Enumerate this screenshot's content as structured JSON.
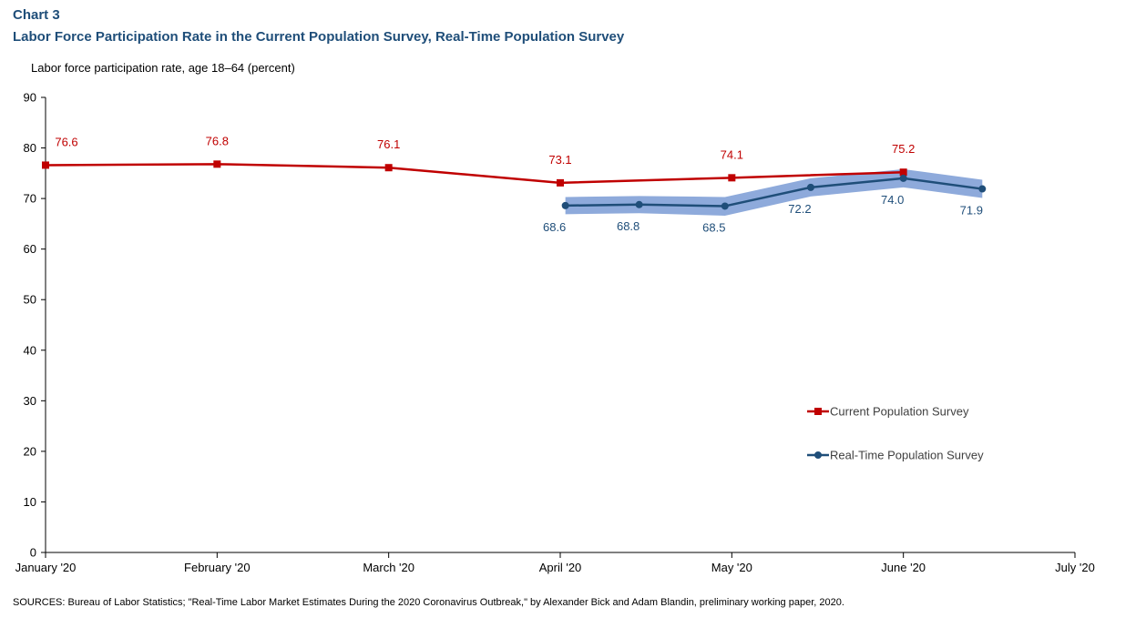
{
  "header": {
    "chart_label": "Chart 3",
    "title": "Labor Force Participation Rate in the Current Population Survey, Real-Time Population Survey"
  },
  "footer": {
    "sources": "SOURCES: Bureau of Labor Statistics; \"Real-Time Labor Market Estimates During the 2020 Coronavirus Outbreak,\" by Alexander Bick and Adam Blandin, preliminary working paper, 2020."
  },
  "colors": {
    "title": "#1f4e79",
    "cps": "#c00000",
    "rps": "#1f4e79",
    "band": "#8eaadb"
  },
  "chart_data": {
    "type": "line",
    "ylabel": "Labor force participation rate, age 18–64 (percent)",
    "ylim": [
      0,
      90
    ],
    "yticks": [
      0,
      10,
      20,
      30,
      40,
      50,
      60,
      70,
      80,
      90
    ],
    "xlim": [
      0,
      6
    ],
    "xticks": [
      {
        "x": 0,
        "label": "January '20"
      },
      {
        "x": 1,
        "label": "February '20"
      },
      {
        "x": 2,
        "label": "March '20"
      },
      {
        "x": 3,
        "label": "April '20"
      },
      {
        "x": 4,
        "label": "May '20"
      },
      {
        "x": 5,
        "label": "June '20"
      },
      {
        "x": 6,
        "label": "July '20"
      }
    ],
    "grid": false,
    "legend_position": "bottom-right",
    "series": [
      {
        "name": "Current Population Survey",
        "marker": "square",
        "x": [
          0,
          1,
          2,
          3,
          4,
          5
        ],
        "values": [
          76.6,
          76.8,
          76.1,
          73.1,
          74.1,
          75.2
        ],
        "labels": [
          "76.6",
          "76.8",
          "76.1",
          "73.1",
          "74.1",
          "75.2"
        ]
      },
      {
        "name": "Real-Time Population Survey",
        "marker": "circle",
        "x": [
          3.03,
          3.46,
          3.96,
          4.46,
          5.0,
          5.46
        ],
        "values": [
          68.6,
          68.8,
          68.5,
          72.2,
          74.0,
          71.9
        ],
        "labels": [
          "68.6",
          "68.8",
          "68.5",
          "72.2",
          "74.0",
          "71.9"
        ],
        "band": {
          "lower": [
            66.9,
            67.1,
            66.6,
            70.4,
            72.2,
            70.1
          ],
          "upper": [
            70.3,
            70.5,
            70.3,
            74.0,
            75.8,
            73.7
          ]
        }
      }
    ]
  }
}
